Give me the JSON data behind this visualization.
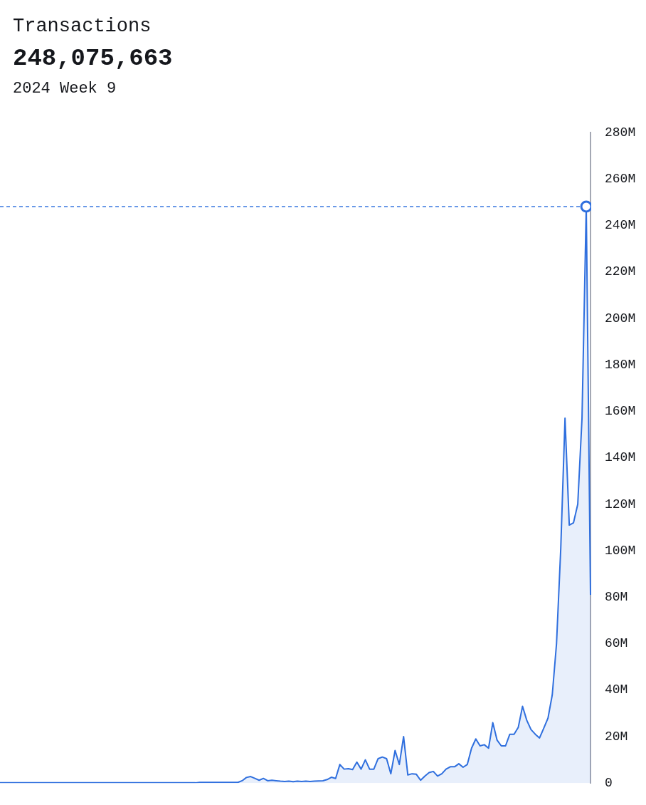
{
  "chart_data": {
    "type": "area",
    "title": "Transactions",
    "subtitle": "248,075,663",
    "annotations": [
      "2024 Week 9"
    ],
    "categories": [
      null,
      null,
      null,
      null,
      null,
      null,
      null,
      null,
      null,
      null,
      null,
      null,
      null,
      null,
      null,
      null,
      null,
      null,
      null,
      null,
      null,
      null,
      null,
      null,
      null,
      null,
      null,
      null,
      null,
      null,
      null,
      null,
      null,
      null,
      null,
      null,
      null,
      null,
      null,
      null,
      null,
      null,
      null,
      null,
      null,
      null,
      null,
      null,
      null,
      null,
      null,
      null,
      null,
      null,
      null,
      null,
      null,
      null,
      null,
      null,
      null,
      null,
      null,
      null,
      null,
      null,
      null,
      null,
      null,
      null,
      null,
      null,
      null,
      null,
      null,
      null,
      null,
      null,
      null,
      null,
      null,
      null,
      null,
      null,
      null,
      null,
      null,
      null,
      null,
      null,
      null,
      null,
      null,
      null,
      null,
      null,
      null,
      null,
      null,
      null,
      null,
      null,
      null,
      null,
      null,
      null,
      null,
      null,
      null,
      null,
      null,
      null,
      null,
      null,
      null,
      null,
      null,
      null,
      null,
      null,
      null,
      null,
      null,
      null,
      null,
      null,
      null,
      null,
      null,
      null,
      null,
      null,
      null,
      null,
      null,
      null,
      null,
      null,
      null,
      null
    ],
    "series": [
      {
        "color": "#2f6fde",
        "values": [
          100000,
          100000,
          100000,
          100000,
          100000,
          100000,
          100000,
          100000,
          100000,
          100000,
          100000,
          100000,
          100000,
          100000,
          100000,
          100000,
          100000,
          100000,
          100000,
          100000,
          100000,
          100000,
          100000,
          100000,
          100000,
          100000,
          100000,
          100000,
          100000,
          100000,
          100000,
          100000,
          100000,
          100000,
          100000,
          100000,
          100000,
          100000,
          100000,
          100000,
          100000,
          100000,
          100000,
          100000,
          100000,
          100000,
          100000,
          300000,
          300000,
          300000,
          300000,
          300000,
          300000,
          300000,
          300000,
          300000,
          300000,
          1000000,
          2400000,
          2800000,
          2000000,
          1200000,
          2000000,
          1000000,
          1200000,
          1000000,
          800000,
          700000,
          800000,
          600000,
          800000,
          700000,
          800000,
          700000,
          800000,
          900000,
          1000000,
          1500000,
          2500000,
          2000000,
          8000000,
          6000000,
          6200000,
          5800000,
          9000000,
          6000000,
          10000000,
          6000000,
          6000000,
          10500000,
          11200000,
          10500000,
          4000000,
          14000000,
          8000000,
          20000000,
          3500000,
          4000000,
          3800000,
          1200000,
          3000000,
          4500000,
          5000000,
          3000000,
          4000000,
          6000000,
          7000000,
          7000000,
          8300000,
          6800000,
          8000000,
          15000000,
          19000000,
          16000000,
          16500000,
          15000000,
          26000000,
          18500000,
          16000000,
          16000000,
          21000000,
          21000000,
          24000000,
          33000000,
          27000000,
          23000000,
          21000000,
          19400000,
          23600000,
          28000000,
          38000000,
          60000000,
          101000000,
          157000000,
          111000000,
          112000000,
          120000000,
          157000000,
          248075663,
          81000000
        ]
      }
    ],
    "ylim": [
      0,
      280000000
    ],
    "yticks": [
      {
        "value": 0,
        "label": "0"
      },
      {
        "value": 20000000,
        "label": "20M"
      },
      {
        "value": 40000000,
        "label": "40M"
      },
      {
        "value": 60000000,
        "label": "60M"
      },
      {
        "value": 80000000,
        "label": "80M"
      },
      {
        "value": 100000000,
        "label": "100M"
      },
      {
        "value": 120000000,
        "label": "120M"
      },
      {
        "value": 140000000,
        "label": "140M"
      },
      {
        "value": 160000000,
        "label": "160M"
      },
      {
        "value": 180000000,
        "label": "180M"
      },
      {
        "value": 200000000,
        "label": "200M"
      },
      {
        "value": 220000000,
        "label": "220M"
      },
      {
        "value": 240000000,
        "label": "240M"
      },
      {
        "value": 260000000,
        "label": "260M"
      },
      {
        "value": 280000000,
        "label": "280M"
      }
    ],
    "ref_lines": [
      {
        "axis": "y",
        "value": 248075663,
        "color": "#3a78e0",
        "line_style": "dashed"
      }
    ],
    "tick_labels": "y",
    "grid": false,
    "legend": false
  }
}
